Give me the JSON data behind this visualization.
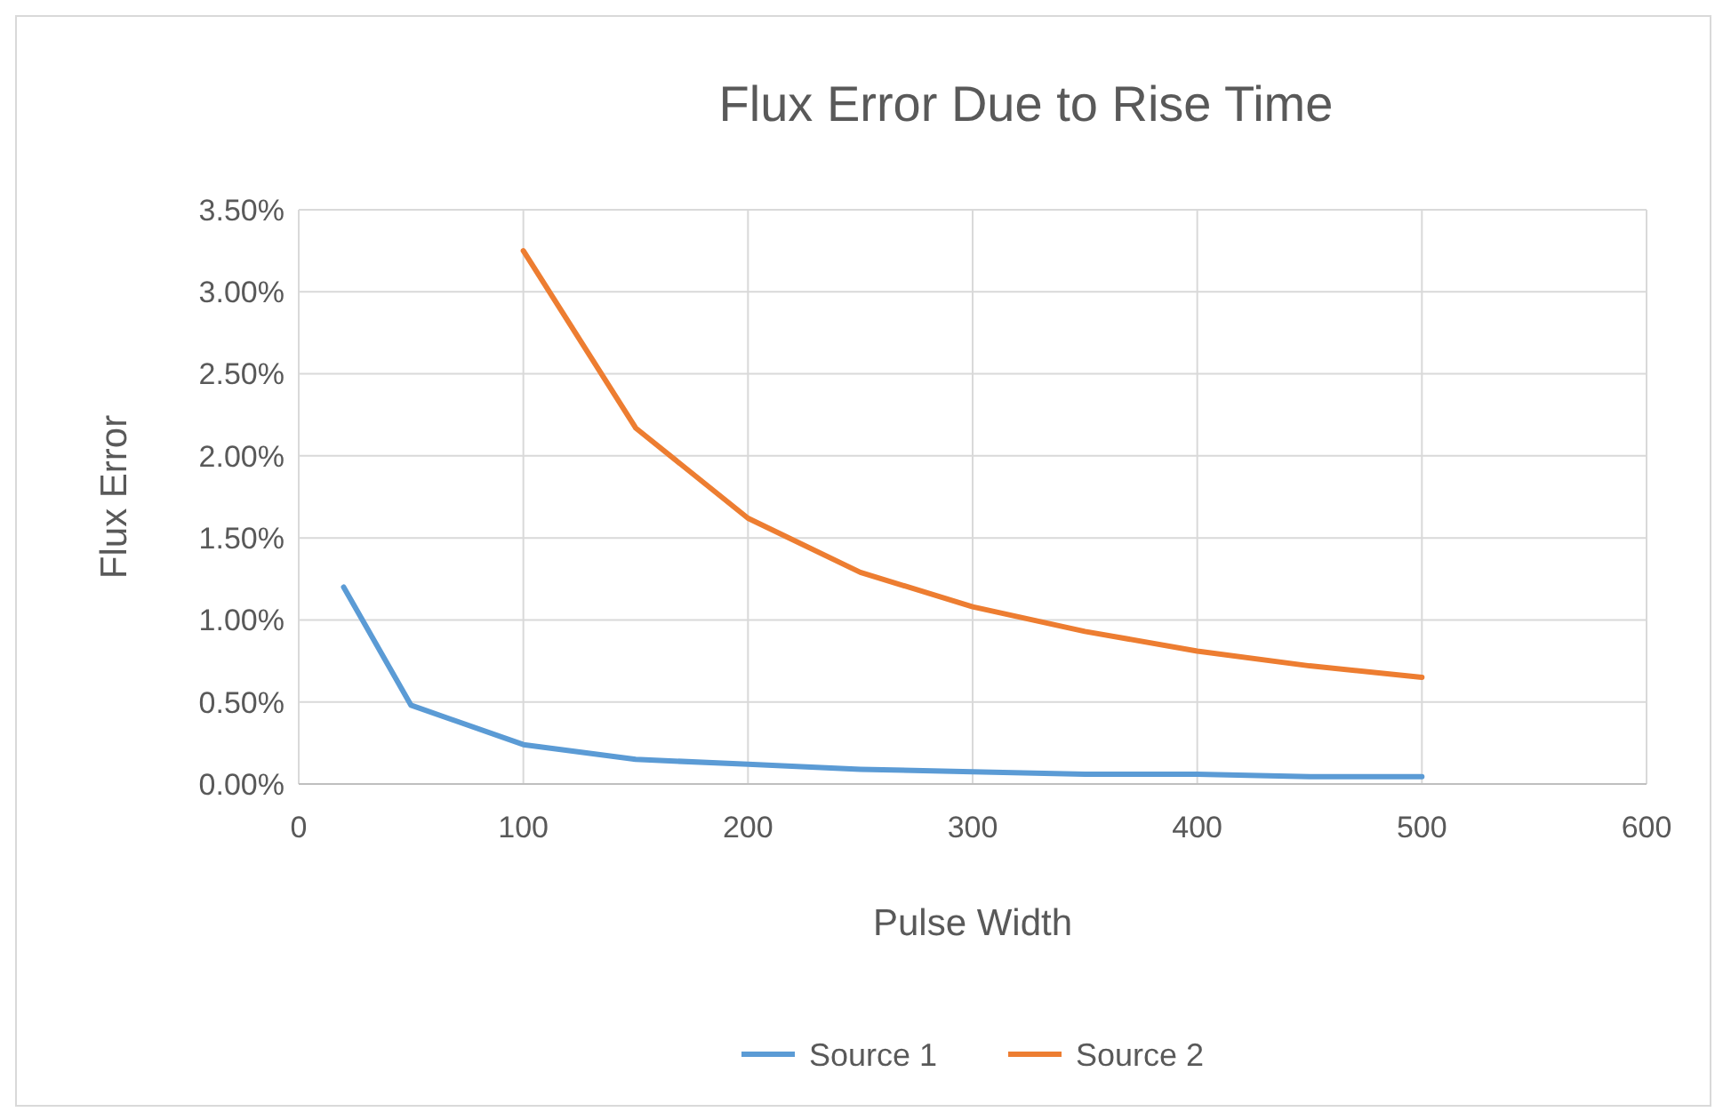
{
  "chart_data": {
    "type": "line",
    "title": "Flux Error Due to Rise Time",
    "xlabel": "Pulse Width",
    "ylabel": "Flux Error",
    "xlim": [
      0,
      600
    ],
    "xticks": [
      0,
      100,
      200,
      300,
      400,
      500,
      600
    ],
    "ylim": [
      0,
      3.5
    ],
    "yticks": [
      {
        "value": 0,
        "label": "0.00%"
      },
      {
        "value": 0.5,
        "label": "0.50%"
      },
      {
        "value": 1,
        "label": "1.00%"
      },
      {
        "value": 1.5,
        "label": "1.50%"
      },
      {
        "value": 2,
        "label": "2.00%"
      },
      {
        "value": 2.5,
        "label": "2.50%"
      },
      {
        "value": 3,
        "label": "3.00%"
      },
      {
        "value": 3.5,
        "label": "3.50%"
      }
    ],
    "grid": true,
    "legend": "bottom",
    "marker": "none",
    "line_style": "solid",
    "series": [
      {
        "name": "Source 1",
        "color": "#5b9bd5",
        "x": [
          20,
          50,
          100,
          150,
          200,
          250,
          300,
          350,
          400,
          450,
          500
        ],
        "values": [
          1.2,
          0.48,
          0.24,
          0.15,
          0.12,
          0.09,
          0.075,
          0.06,
          0.06,
          0.045,
          0.045
        ]
      },
      {
        "name": "Source 2",
        "color": "#ed7d31",
        "x": [
          100,
          150,
          200,
          250,
          300,
          350,
          400,
          450,
          500
        ],
        "values": [
          3.25,
          2.17,
          1.62,
          1.29,
          1.08,
          0.93,
          0.81,
          0.72,
          0.65
        ]
      }
    ]
  }
}
